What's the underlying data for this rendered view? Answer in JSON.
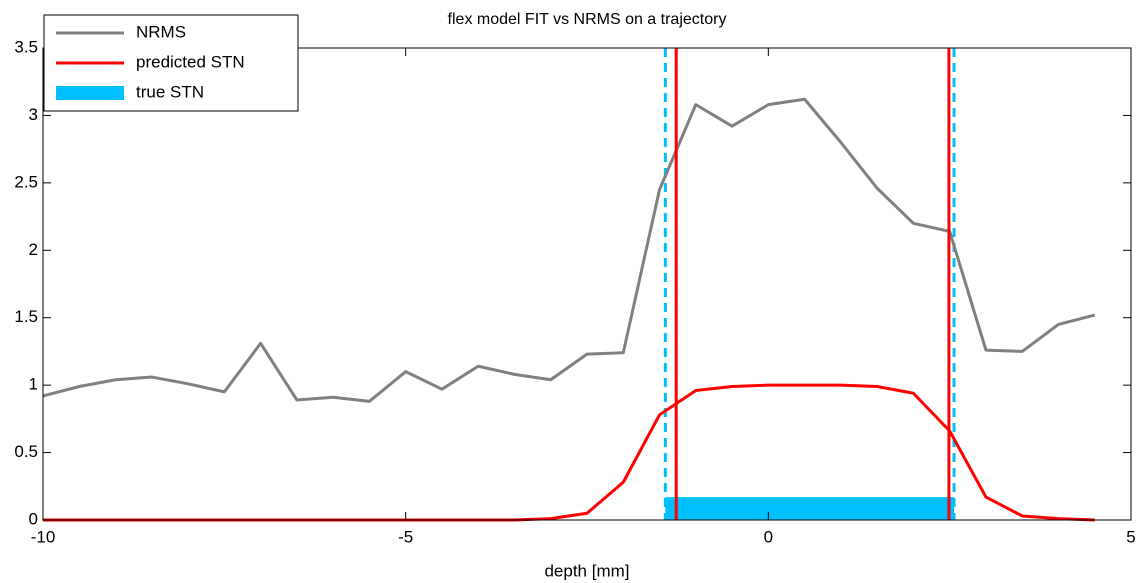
{
  "chart_data": {
    "type": "line",
    "title": "flex model FIT vs NRMS on a trajectory",
    "x_label": "depth [mm]",
    "x": [
      -10,
      -9.5,
      -9,
      -8.5,
      -8,
      -7.5,
      -7,
      -6.5,
      -6,
      -5.5,
      -5,
      -4.5,
      -4,
      -3.5,
      -3,
      -2.5,
      -2,
      -1.5,
      -1,
      -0.5,
      0,
      0.5,
      1,
      1.5,
      2,
      2.5,
      3,
      3.5,
      4,
      4.5
    ],
    "series": [
      {
        "name": "NRMS",
        "color": "#808080",
        "values": [
          0.92,
          0.99,
          1.04,
          1.06,
          1.01,
          0.95,
          1.31,
          0.89,
          0.91,
          0.88,
          1.1,
          0.97,
          1.14,
          1.08,
          1.04,
          1.23,
          1.24,
          2.45,
          3.08,
          2.92,
          3.08,
          3.12,
          2.8,
          2.46,
          2.2,
          2.14,
          1.26,
          1.25,
          1.45,
          1.52
        ]
      },
      {
        "name": "predicted STN",
        "color": "#ff0000",
        "values": [
          0,
          0,
          0,
          0,
          0,
          0,
          0,
          0,
          0,
          0,
          0,
          0,
          0,
          0,
          0.01,
          0.05,
          0.28,
          0.78,
          0.96,
          0.99,
          1.0,
          1.0,
          1.0,
          0.99,
          0.94,
          0.66,
          0.17,
          0.03,
          0.01,
          0
        ],
        "bounds": [
          -1.27,
          2.49
        ]
      }
    ],
    "band": {
      "name": "true STN",
      "color": "#00bfff",
      "x_range": [
        -1.42,
        2.56
      ],
      "height": 0.17
    },
    "xlim": [
      -10,
      5
    ],
    "ylim": [
      0,
      3.5
    ],
    "xticks": [
      -10,
      -5,
      0,
      5
    ],
    "yticks": [
      0,
      0.5,
      1,
      1.5,
      2,
      2.5,
      3,
      3.5
    ],
    "grid": false,
    "legend": "upper left"
  }
}
